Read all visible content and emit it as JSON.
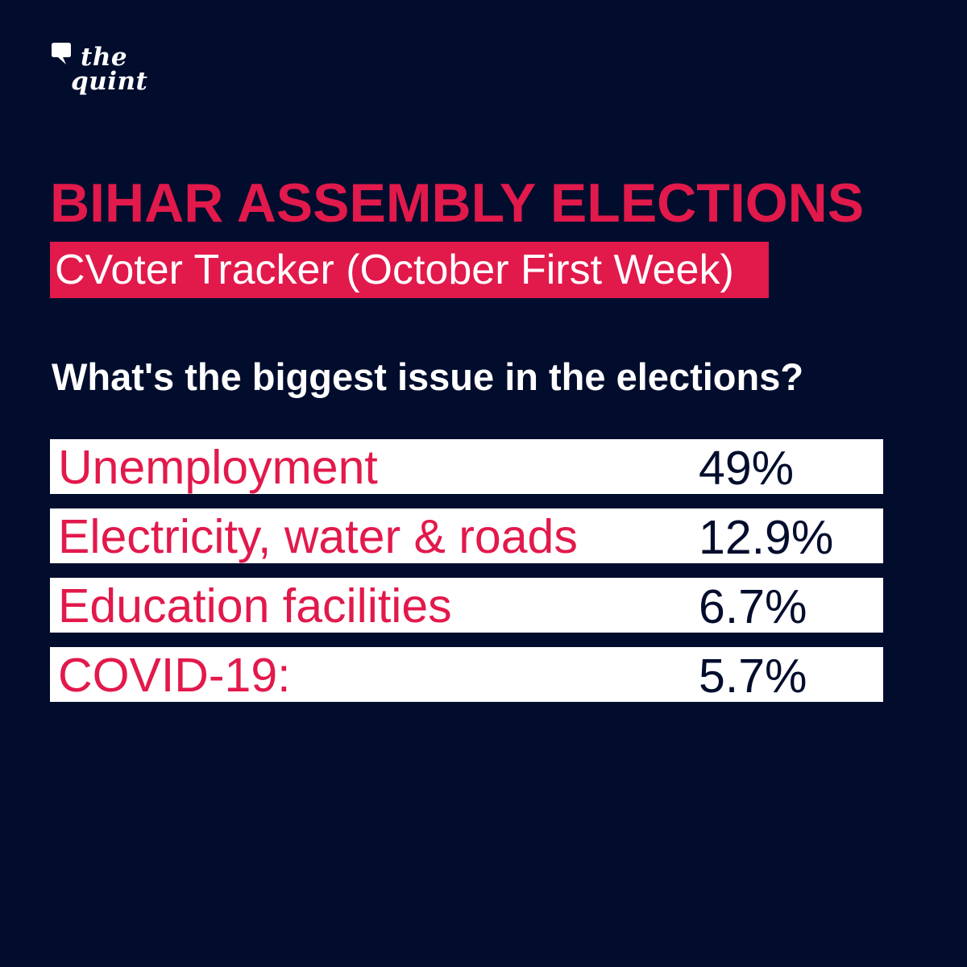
{
  "brand": {
    "logo_line1": "the",
    "logo_line2": "quint",
    "logo_color": "#ffffff"
  },
  "colors": {
    "background": "#020d2d",
    "accent": "#e2194b",
    "row_background": "#ffffff",
    "value_text": "#020d2d"
  },
  "headline": "BIHAR ASSEMBLY ELECTIONS",
  "subhead": "CVoter Tracker (October First Week)",
  "question": "What's the biggest issue in the elections?",
  "chart_data": {
    "type": "table",
    "title": "BIHAR ASSEMBLY ELECTIONS",
    "subtitle": "CVoter Tracker (October First Week)",
    "question": "What's the biggest issue in the elections?",
    "rows": [
      {
        "label": "Unemployment",
        "value_text": "49%",
        "value": 49
      },
      {
        "label": "Electricity, water & roads",
        "value_text": "12.9%",
        "value": 12.9
      },
      {
        "label": "Education facilities",
        "value_text": "6.7%",
        "value": 6.7
      },
      {
        "label": "COVID-19:",
        "value_text": "5.7%",
        "value": 5.7
      }
    ]
  }
}
